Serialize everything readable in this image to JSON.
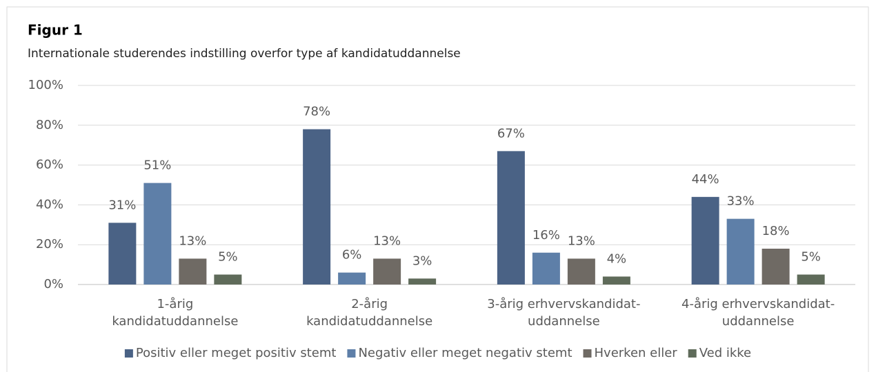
{
  "chart_data": {
    "type": "bar",
    "title": "Figur 1",
    "subtitle": "Internationale studerendes indstilling overfor type af kandidatuddannelse",
    "categories": [
      [
        "1-årig",
        "kandidatuddannelse"
      ],
      [
        "2-årig",
        "kandidatuddannelse"
      ],
      [
        "3-årig erhvervskandidat-",
        "uddannelse"
      ],
      [
        "4-årig erhvervskandidat-",
        "uddannelse"
      ]
    ],
    "series": [
      {
        "name": "Positiv eller meget positiv stemt",
        "color": "#4a6285",
        "values": [
          31,
          78,
          67,
          44
        ],
        "value_labels": [
          "31%",
          "78%",
          "67%",
          "44%"
        ]
      },
      {
        "name": "Negativ eller meget negativ stemt",
        "color": "#5e7fa8",
        "values": [
          51,
          6,
          16,
          33
        ],
        "value_labels": [
          "51%",
          "6%",
          "16%",
          "33%"
        ]
      },
      {
        "name": "Hverken eller",
        "color": "#6f6a64",
        "values": [
          13,
          13,
          13,
          18
        ],
        "value_labels": [
          "13%",
          "13%",
          "13%",
          "18%"
        ]
      },
      {
        "name": "Ved ikke",
        "color": "#5f6b5a",
        "values": [
          5,
          3,
          4,
          5
        ],
        "value_labels": [
          "5%",
          "3%",
          "4%",
          "5%"
        ]
      }
    ],
    "ylim": [
      0,
      100
    ],
    "yticks": [
      {
        "value": 0,
        "label": "0%"
      },
      {
        "value": 20,
        "label": "20%"
      },
      {
        "value": 40,
        "label": "40%"
      },
      {
        "value": 60,
        "label": "60%"
      },
      {
        "value": 80,
        "label": "80%"
      },
      {
        "value": 100,
        "label": "100%"
      }
    ],
    "grid": true,
    "legend": "bottom"
  }
}
